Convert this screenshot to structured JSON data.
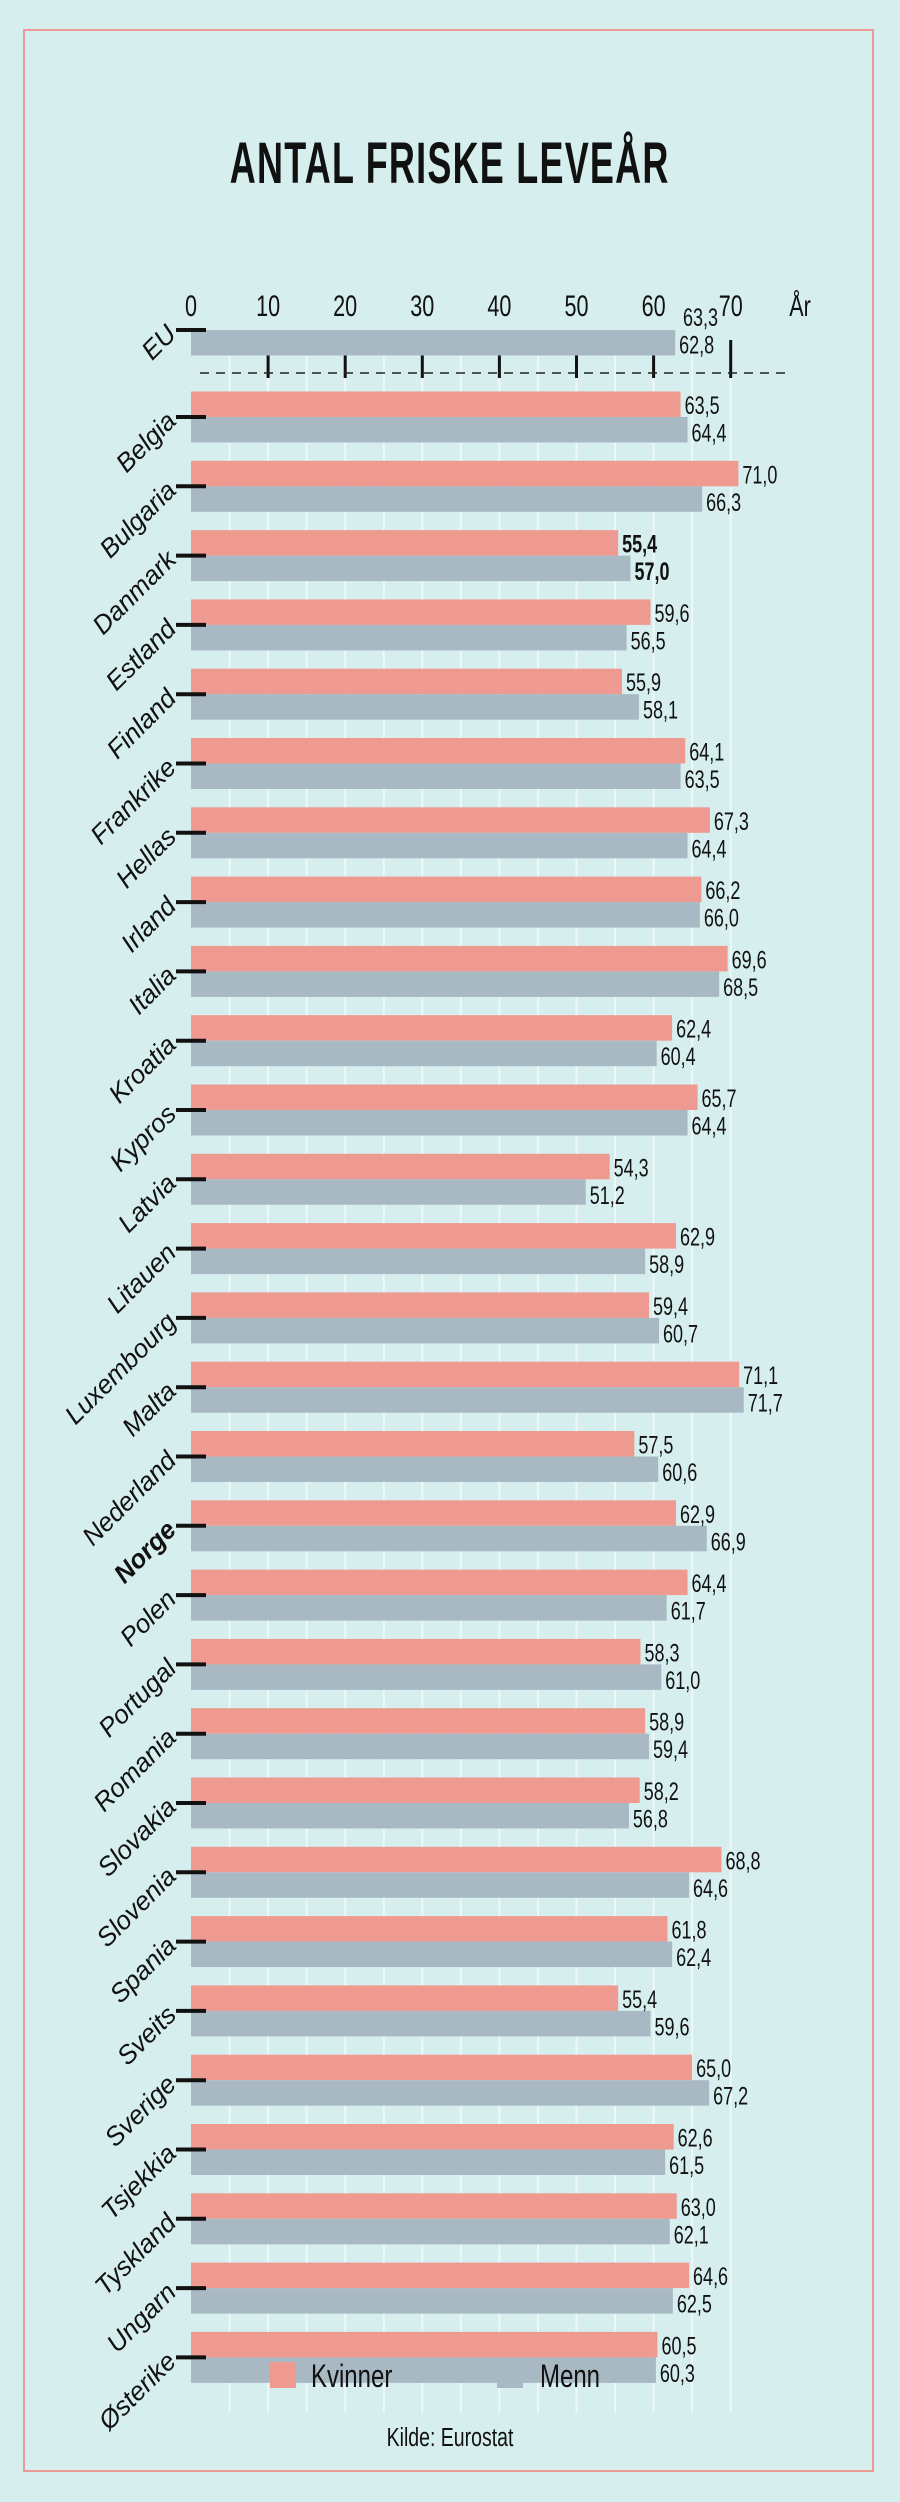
{
  "chart_data": {
    "type": "bar",
    "orientation": "horizontal",
    "title": "ANTAL FRISKE LEVEÅR",
    "xlabel": "År",
    "xlim": [
      0,
      70
    ],
    "xticks": [
      "0",
      "10",
      "20",
      "30",
      "40",
      "50",
      "60",
      "70"
    ],
    "grid": true,
    "legend_position": "bottom",
    "colors": {
      "Kvinner": "#ef9a90",
      "Menn": "#a9b9c4"
    },
    "reference": {
      "category": "EU",
      "Kvinner": 63.3,
      "Menn": 62.8,
      "labels": [
        "63,3",
        "62,8"
      ]
    },
    "categories": [
      "Belgia",
      "Bulgaria",
      "Danmark",
      "Estland",
      "Finland",
      "Frankrike",
      "Hellas",
      "Irland",
      "Italia",
      "Kroatia",
      "Kypros",
      "Latvia",
      "Litauen",
      "Luxembourg",
      "Malta",
      "Nederland",
      "Norge",
      "Polen",
      "Portugal",
      "Romania",
      "Slovakia",
      "Slovenia",
      "Spania",
      "Sveits",
      "Sverige",
      "Tsjekkia",
      "Tyskland",
      "Ungarn",
      "Østerike"
    ],
    "highlighted": [
      "Danmark",
      "Norge"
    ],
    "series": [
      {
        "name": "Kvinner",
        "values": [
          63.5,
          71.0,
          55.4,
          59.6,
          55.9,
          64.1,
          67.3,
          66.2,
          69.6,
          62.4,
          65.7,
          54.3,
          62.9,
          59.4,
          71.1,
          57.5,
          62.9,
          64.4,
          58.3,
          58.9,
          58.2,
          68.8,
          61.8,
          55.4,
          65.0,
          62.6,
          63.0,
          64.6,
          60.5
        ],
        "labels": [
          "63,5",
          "71,0",
          "55,4",
          "59,6",
          "55,9",
          "64,1",
          "67,3",
          "66,2",
          "69,6",
          "62,4",
          "65,7",
          "54,3",
          "62,9",
          "59,4",
          "71,1",
          "57,5",
          "62,9",
          "64,4",
          "58,3",
          "58,9",
          "58,2",
          "68,8",
          "61,8",
          "55,4",
          "65,0",
          "62,6",
          "63,0",
          "64,6",
          "60,5"
        ]
      },
      {
        "name": "Menn",
        "values": [
          64.4,
          66.3,
          57.0,
          56.5,
          58.1,
          63.5,
          64.4,
          66.0,
          68.5,
          60.4,
          64.4,
          51.2,
          58.9,
          60.7,
          71.7,
          60.6,
          66.9,
          61.7,
          61.0,
          59.4,
          56.8,
          64.6,
          62.4,
          59.6,
          67.2,
          61.5,
          62.1,
          62.5,
          60.3
        ],
        "labels": [
          "64,4",
          "66,3",
          "57,0",
          "56,5",
          "58,1",
          "63,5",
          "64,4",
          "66,0",
          "68,5",
          "60,4",
          "64,4",
          "51,2",
          "58,9",
          "60,7",
          "71,7",
          "60,6",
          "66,9",
          "61,7",
          "61,0",
          "59,4",
          "56,8",
          "64,6",
          "62,4",
          "59,6",
          "67,2",
          "61,5",
          "62,1",
          "62,5",
          "60,3"
        ]
      }
    ],
    "source": "Kilde: Eurostat"
  }
}
